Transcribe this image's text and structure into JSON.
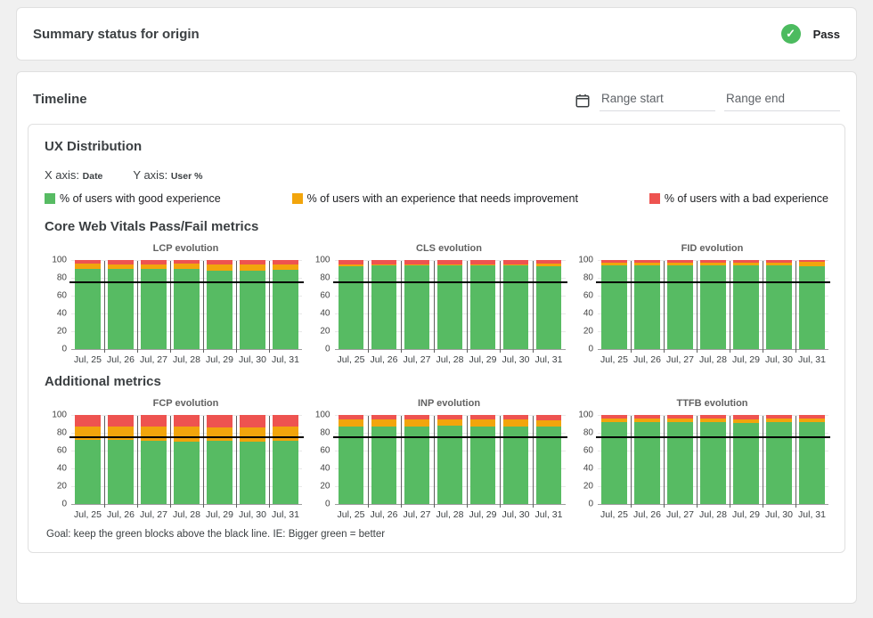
{
  "summary_card": {
    "title": "Summary status for origin",
    "status_label": "Pass",
    "status_icon": "check",
    "status_color": "#4CBB5F"
  },
  "timeline": {
    "title": "Timeline",
    "range_start_placeholder": "Range start",
    "range_end_placeholder": "Range end"
  },
  "ux": {
    "title": "UX Distribution",
    "x_axis_label": "X axis:",
    "x_axis_value": "Date",
    "y_axis_label": "Y axis:",
    "y_axis_value": "User %",
    "legend": [
      {
        "label": "% of users with good experience",
        "color": "#57BB63"
      },
      {
        "label": "% of users with an experience that needs improvement",
        "color": "#F2A50C"
      },
      {
        "label": "% of users with a bad experience",
        "color": "#EE5350"
      }
    ],
    "core_heading": "Core Web Vitals Pass/Fail metrics",
    "additional_heading": "Additional metrics",
    "goal_note": "Goal: keep the green blocks above the black line. IE: Bigger green = better"
  },
  "colors": {
    "good": "#57BB63",
    "needs_improvement": "#F2A50C",
    "bad": "#EE5350",
    "threshold": "#000000"
  },
  "chart_data": [
    {
      "type": "bar",
      "title": "LCP evolution",
      "section": "core",
      "categories": [
        "Jul, 25",
        "Jul, 26",
        "Jul, 27",
        "Jul, 28",
        "Jul, 29",
        "Jul, 30",
        "Jul, 31"
      ],
      "series": [
        {
          "name": "% of users with good experience",
          "values": [
            90,
            90,
            90,
            90,
            88,
            88,
            89
          ]
        },
        {
          "name": "% of users with an experience that needs improvement",
          "values": [
            6,
            5,
            5,
            6,
            7,
            7,
            6
          ]
        },
        {
          "name": "% of users with a bad experience",
          "values": [
            4,
            5,
            5,
            4,
            5,
            5,
            5
          ]
        }
      ],
      "ylim": [
        0,
        100
      ],
      "yticks": [
        0,
        20,
        40,
        60,
        80,
        100
      ],
      "threshold": 75
    },
    {
      "type": "bar",
      "title": "CLS evolution",
      "section": "core",
      "categories": [
        "Jul, 25",
        "Jul, 26",
        "Jul, 27",
        "Jul, 28",
        "Jul, 29",
        "Jul, 30",
        "Jul, 31"
      ],
      "series": [
        {
          "name": "% of users with good experience",
          "values": [
            93,
            94,
            94,
            94,
            94,
            94,
            93
          ]
        },
        {
          "name": "% of users with an experience that needs improvement",
          "values": [
            2,
            1,
            1,
            1,
            1,
            1,
            3
          ]
        },
        {
          "name": "% of users with a bad experience",
          "values": [
            5,
            5,
            5,
            5,
            5,
            5,
            4
          ]
        }
      ],
      "ylim": [
        0,
        100
      ],
      "yticks": [
        0,
        20,
        40,
        60,
        80,
        100
      ],
      "threshold": 75
    },
    {
      "type": "bar",
      "title": "FID evolution",
      "section": "core",
      "categories": [
        "Jul, 25",
        "Jul, 26",
        "Jul, 27",
        "Jul, 28",
        "Jul, 29",
        "Jul, 30",
        "Jul, 31"
      ],
      "series": [
        {
          "name": "% of users with good experience",
          "values": [
            94,
            94,
            94,
            94,
            94,
            94,
            93
          ]
        },
        {
          "name": "% of users with an experience that needs improvement",
          "values": [
            3,
            3,
            3,
            3,
            3,
            3,
            5
          ]
        },
        {
          "name": "% of users with a bad experience",
          "values": [
            3,
            3,
            3,
            3,
            3,
            3,
            2
          ]
        }
      ],
      "ylim": [
        0,
        100
      ],
      "yticks": [
        0,
        20,
        40,
        60,
        80,
        100
      ],
      "threshold": 75
    },
    {
      "type": "bar",
      "title": "FCP evolution",
      "section": "additional",
      "categories": [
        "Jul, 25",
        "Jul, 26",
        "Jul, 27",
        "Jul, 28",
        "Jul, 29",
        "Jul, 30",
        "Jul, 31"
      ],
      "series": [
        {
          "name": "% of users with good experience",
          "values": [
            72,
            72,
            71,
            70,
            71,
            70,
            71
          ]
        },
        {
          "name": "% of users with an experience that needs improvement",
          "values": [
            15,
            15,
            16,
            17,
            15,
            16,
            16
          ]
        },
        {
          "name": "% of users with a bad experience",
          "values": [
            13,
            13,
            13,
            13,
            14,
            14,
            13
          ]
        }
      ],
      "ylim": [
        0,
        100
      ],
      "yticks": [
        0,
        20,
        40,
        60,
        80,
        100
      ],
      "threshold": 75
    },
    {
      "type": "bar",
      "title": "INP evolution",
      "section": "additional",
      "categories": [
        "Jul, 25",
        "Jul, 26",
        "Jul, 27",
        "Jul, 28",
        "Jul, 29",
        "Jul, 30",
        "Jul, 31"
      ],
      "series": [
        {
          "name": "% of users with good experience",
          "values": [
            87,
            87,
            87,
            88,
            87,
            87,
            87
          ]
        },
        {
          "name": "% of users with an experience that needs improvement",
          "values": [
            8,
            8,
            8,
            7,
            8,
            8,
            7
          ]
        },
        {
          "name": "% of users with a bad experience",
          "values": [
            5,
            5,
            5,
            5,
            5,
            5,
            6
          ]
        }
      ],
      "ylim": [
        0,
        100
      ],
      "yticks": [
        0,
        20,
        40,
        60,
        80,
        100
      ],
      "threshold": 75
    },
    {
      "type": "bar",
      "title": "TTFB evolution",
      "section": "additional",
      "categories": [
        "Jul, 25",
        "Jul, 26",
        "Jul, 27",
        "Jul, 28",
        "Jul, 29",
        "Jul, 30",
        "Jul, 31"
      ],
      "series": [
        {
          "name": "% of users with good experience",
          "values": [
            92,
            92,
            92,
            92,
            91,
            92,
            92
          ]
        },
        {
          "name": "% of users with an experience that needs improvement",
          "values": [
            4,
            4,
            4,
            4,
            4,
            4,
            4
          ]
        },
        {
          "name": "% of users with a bad experience",
          "values": [
            4,
            4,
            4,
            4,
            5,
            4,
            4
          ]
        }
      ],
      "ylim": [
        0,
        100
      ],
      "yticks": [
        0,
        20,
        40,
        60,
        80,
        100
      ],
      "threshold": 75
    }
  ]
}
